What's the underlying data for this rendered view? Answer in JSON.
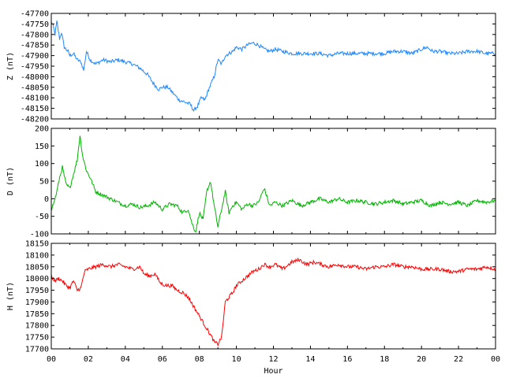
{
  "chart_data": [
    {
      "type": "line",
      "ylabel": "Z (nT)",
      "color": "#1e88ff",
      "ylim": [
        -48200,
        -47700
      ],
      "yticks": [
        -47700,
        -47750,
        -47800,
        -47850,
        -47900,
        -47950,
        -48000,
        -48050,
        -48100,
        -48150,
        -48200
      ],
      "xlim": [
        0,
        24
      ],
      "grid": false,
      "series": [
        {
          "x": [
            0,
            0.1,
            0.2,
            0.3,
            0.45,
            0.55,
            0.7,
            0.9,
            1.0,
            1.2,
            1.4,
            1.6,
            1.75,
            1.9,
            2.1,
            2.4,
            2.8,
            3.2,
            3.6,
            4.0,
            4.4,
            4.8,
            5.2,
            5.5,
            5.8,
            6.0,
            6.3,
            6.6,
            6.9,
            7.2,
            7.5,
            7.7,
            7.9,
            8.1,
            8.3,
            8.5,
            8.8,
            9.0,
            9.2,
            9.4,
            9.6,
            9.8,
            10.0,
            10.3,
            10.6,
            10.9,
            11.2,
            11.5,
            11.8,
            12.1,
            12.5,
            13.0,
            13.5,
            14.0,
            14.5,
            15.0,
            15.5,
            16.0,
            16.5,
            17.0,
            17.5,
            18.0,
            18.5,
            19.0,
            19.5,
            20.0,
            20.3,
            20.6,
            21.0,
            21.5,
            22.0,
            22.5,
            23.0,
            23.5,
            24.0
          ],
          "y": [
            -47740,
            -47760,
            -47800,
            -47740,
            -47820,
            -47790,
            -47860,
            -47880,
            -47900,
            -47890,
            -47920,
            -47930,
            -47970,
            -47880,
            -47920,
            -47940,
            -47920,
            -47930,
            -47920,
            -47930,
            -47940,
            -47960,
            -47990,
            -48030,
            -48060,
            -48050,
            -48050,
            -48080,
            -48110,
            -48120,
            -48130,
            -48160,
            -48140,
            -48100,
            -48110,
            -48060,
            -48000,
            -47920,
            -47940,
            -47900,
            -47890,
            -47880,
            -47860,
            -47870,
            -47850,
            -47840,
            -47850,
            -47870,
            -47880,
            -47870,
            -47880,
            -47890,
            -47890,
            -47890,
            -47890,
            -47900,
            -47890,
            -47890,
            -47890,
            -47890,
            -47890,
            -47890,
            -47880,
            -47880,
            -47890,
            -47870,
            -47860,
            -47880,
            -47880,
            -47890,
            -47890,
            -47880,
            -47880,
            -47890,
            -47890
          ]
        }
      ]
    },
    {
      "type": "line",
      "ylabel": "D (nT)",
      "color": "#00b400",
      "ylim": [
        -100,
        200
      ],
      "yticks": [
        200,
        150,
        100,
        50,
        0,
        -50,
        -100
      ],
      "xlim": [
        0,
        24
      ],
      "grid": false,
      "series": [
        {
          "x": [
            0,
            0.15,
            0.3,
            0.45,
            0.6,
            0.8,
            1.0,
            1.2,
            1.4,
            1.55,
            1.7,
            1.9,
            2.1,
            2.4,
            2.8,
            3.2,
            3.6,
            4.0,
            4.4,
            4.8,
            5.2,
            5.6,
            6.0,
            6.4,
            6.8,
            7.1,
            7.4,
            7.6,
            7.8,
            8.0,
            8.2,
            8.4,
            8.6,
            8.8,
            9.0,
            9.2,
            9.4,
            9.6,
            9.8,
            10.0,
            10.3,
            10.6,
            10.9,
            11.2,
            11.5,
            11.8,
            12.1,
            12.5,
            13.0,
            13.5,
            14.0,
            14.5,
            15.0,
            15.5,
            16.0,
            16.5,
            17.0,
            17.5,
            18.0,
            18.5,
            19.0,
            19.5,
            20.0,
            20.5,
            21.0,
            21.5,
            22.0,
            22.5,
            23.0,
            23.5,
            24.0
          ],
          "y": [
            -30,
            -10,
            20,
            60,
            90,
            40,
            30,
            70,
            110,
            180,
            120,
            80,
            60,
            20,
            10,
            0,
            -10,
            -20,
            -15,
            -25,
            -20,
            -10,
            -30,
            -15,
            -20,
            -40,
            -30,
            -70,
            -95,
            -40,
            -60,
            20,
            50,
            -20,
            -80,
            -30,
            20,
            -40,
            -20,
            -10,
            -30,
            -15,
            -20,
            -10,
            30,
            -20,
            -10,
            -20,
            -5,
            -20,
            -10,
            0,
            -10,
            0,
            -10,
            -5,
            -10,
            -15,
            -10,
            -5,
            -15,
            -10,
            -5,
            -20,
            -10,
            -15,
            -10,
            -20,
            -5,
            -10,
            -5
          ]
        }
      ]
    },
    {
      "type": "line",
      "ylabel": "H (nT)",
      "color": "#ff0000",
      "xlabel": "Hour",
      "ylim": [
        17700,
        18150
      ],
      "yticks": [
        18150,
        18100,
        18050,
        18000,
        17950,
        17900,
        17850,
        17800,
        17750,
        17700
      ],
      "xlim": [
        0,
        24
      ],
      "xticks": [
        "00",
        "02",
        "04",
        "06",
        "08",
        "10",
        "12",
        "14",
        "16",
        "18",
        "20",
        "22",
        "00"
      ],
      "grid": false,
      "series": [
        {
          "x": [
            0,
            0.2,
            0.4,
            0.6,
            0.8,
            1.0,
            1.2,
            1.4,
            1.6,
            1.8,
            2.0,
            2.4,
            2.8,
            3.2,
            3.6,
            4.0,
            4.4,
            4.8,
            5.0,
            5.3,
            5.6,
            5.9,
            6.2,
            6.5,
            6.8,
            7.1,
            7.4,
            7.7,
            8.0,
            8.3,
            8.6,
            8.8,
            9.0,
            9.2,
            9.4,
            9.6,
            9.8,
            10.0,
            10.3,
            10.6,
            10.9,
            11.2,
            11.5,
            11.8,
            12.1,
            12.5,
            13.0,
            13.4,
            13.8,
            14.2,
            14.6,
            15.0,
            15.5,
            16.0,
            16.5,
            17.0,
            17.5,
            18.0,
            18.5,
            19.0,
            19.5,
            20.0,
            20.5,
            21.0,
            21.5,
            22.0,
            22.5,
            23.0,
            23.5,
            24.0
          ],
          "y": [
            18010,
            17990,
            18000,
            17990,
            17970,
            17960,
            17990,
            17950,
            17960,
            18030,
            18040,
            18050,
            18060,
            18050,
            18060,
            18050,
            18040,
            18050,
            18020,
            18010,
            18020,
            17980,
            17970,
            17970,
            17950,
            17940,
            17920,
            17880,
            17840,
            17800,
            17760,
            17730,
            17720,
            17750,
            17900,
            17920,
            17940,
            17970,
            17990,
            18010,
            18030,
            18040,
            18060,
            18050,
            18060,
            18040,
            18070,
            18080,
            18060,
            18070,
            18060,
            18050,
            18060,
            18050,
            18050,
            18040,
            18050,
            18050,
            18060,
            18050,
            18050,
            18040,
            18040,
            18040,
            18030,
            18030,
            18040,
            18040,
            18050,
            18040
          ]
        }
      ]
    }
  ]
}
